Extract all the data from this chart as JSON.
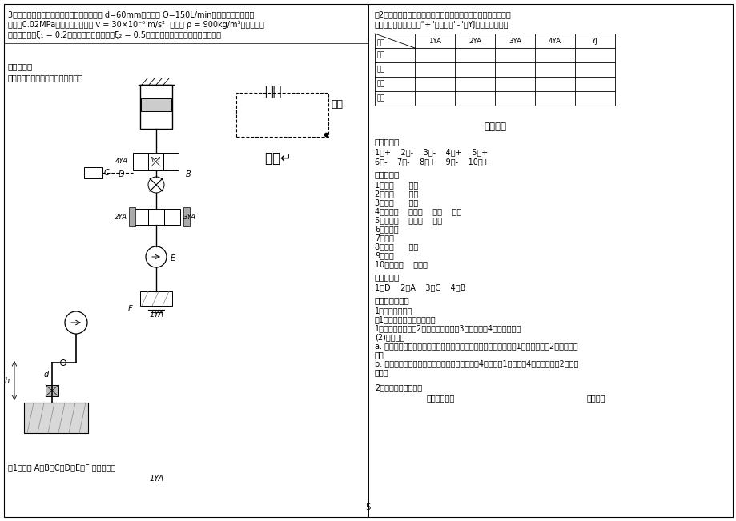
{
  "bg_color": "#ffffff",
  "top_text_lines": [
    "3．如图所示，液压泵从油箱吸油，吸管直径 d=60mm，流量是 Q=150L/min，液压泵入口处的真",
    "空度为0.02MPa，油液的运动粘度 v = 30×10⁻⁶ m/s²  ，密度 ρ = 900kg/m³，弯头处的",
    "局部阻力系数ξ₁ = 0.2，滤网处局部阻力系数ξ₂ = 0.5，不计沿程损失，求泵的吸油高度。"
  ],
  "six_title": "六、综合题",
  "six_sub": "分析下述液压系统原理图，回答问题",
  "kuaijin_label": "快进",
  "gongjin_label": "工进",
  "kuitui_label": "快退↵",
  "label_4YA": "4YA",
  "label_D": "D",
  "label_B": "B",
  "label_2YA": "2YA",
  "label_3YA": "3YA",
  "label_C": "C",
  "label_E": "E",
  "label_F": "F",
  "label_1YA": "1YA",
  "bottom_label": "（1）写出 A、B、C、D、E、F 元件的名称",
  "right_q2_title": "（2）按快进一工进一快退一原位的动作循环，给出电磁铁动作表",
  "right_q2_sub": "电磁铁动作表（通电用\"+\"，断电用\"-\"，YJ为压力继电器）",
  "table_headers": [
    "",
    "1YA",
    "2YA",
    "3YA",
    "4YA",
    "YJ"
  ],
  "table_row_labels": [
    "动作",
    "快进",
    "工进",
    "快退",
    "原位"
  ],
  "ref_ans_title": "参考答案",
  "section1_title": "一、判断题",
  "section1_line1": "1．+    2．-    3．-    4．+    5．+",
  "section1_line2": "6．-    7．-    8．+    9．-    10．+",
  "section2_title": "二、填空题",
  "section2_items": [
    "1．流量      负载",
    "2．沿程      局部",
    "3．实际      理论",
    "4．液压能    机械能    转速    转矩",
    "5．弹簧力    液压力    低压",
    "6．单向阀",
    "7．溢流",
    "8．等容      绝热",
    "9．质量",
    "10．冷凝器    干燥器"
  ],
  "section3_title": "三、选择题",
  "section3_content": "1．D    2．A    3．C    4．B",
  "section4_title": "四、面图分析题",
  "section4_items": [
    "1．双泵供油回路",
    "（1）注明图中液压元件名称",
    "1一低压大流量泵；2一高压小流量泵；3一溢流阀；4一外控顺序阀",
    "(2)油路说明",
    "a. 当系统负载小运动速度快时，油路压力低，外控顺序阀关闭，泵1输出的油与泵2汇合供给系",
    "统。",
    "b. 当系统负载大运动速度慢时，油路压力高，阀4开启，泵1的油经阀4卸荷，仅由泵2向系统",
    "供油。"
  ],
  "section4_q2": "2．两种阀性能的区别",
  "section4_q2_sub1": "直动型溢流阀",
  "section4_q2_sub2": "直动型减"
}
